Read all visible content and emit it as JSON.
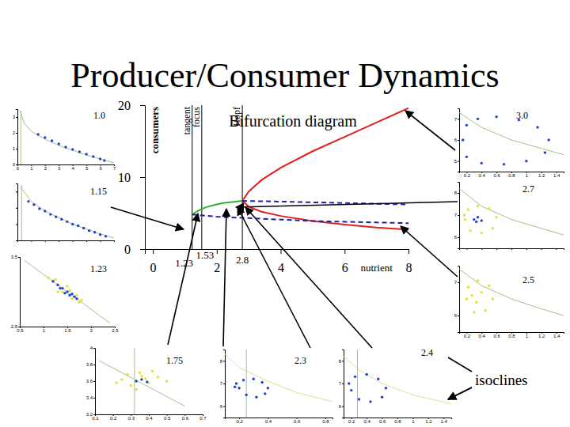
{
  "title": "Producer/Consumer Dynamics",
  "annotation": "isoclines",
  "chart_data": [
    {
      "type": "line",
      "title": "Bifurcation diagram",
      "x_label": "nutrient",
      "y_label": "consumers",
      "xlim": [
        -0.25,
        8
      ],
      "ylim": [
        0,
        20
      ],
      "xticks": [
        0,
        2,
        4,
        6,
        8
      ],
      "yticks": [
        0,
        10,
        20
      ],
      "vlines": [
        {
          "value": 1.23,
          "label": "tangent"
        },
        {
          "value": 1.53,
          "label": "focus"
        },
        {
          "value": 2.8,
          "label": "Hopf"
        }
      ],
      "series": [
        {
          "color": "#30b030",
          "line_style": "solid",
          "x": [
            1.23,
            1.4,
            1.6,
            1.8,
            2.0,
            2.2,
            2.4,
            2.6,
            2.8
          ],
          "values": [
            4.8,
            5.3,
            5.7,
            6.0,
            6.2,
            6.4,
            6.5,
            6.6,
            6.7
          ]
        },
        {
          "color": "#e02020",
          "line_style": "solid",
          "x": [
            2.8,
            3.0,
            3.4,
            4,
            5,
            6,
            7,
            8
          ],
          "values": [
            6.7,
            8.0,
            9.6,
            11.3,
            13.6,
            15.6,
            17.6,
            19.6
          ]
        },
        {
          "color": "#e02020",
          "line_style": "solid",
          "x": [
            2.8,
            3.0,
            3.4,
            4,
            5,
            6,
            7,
            8
          ],
          "values": [
            6.7,
            5.9,
            5.2,
            4.6,
            3.9,
            3.4,
            3.0,
            2.7
          ]
        },
        {
          "color": "#2020a0",
          "line_style": "dashed",
          "x": [
            2.8,
            4,
            5,
            6,
            7,
            8
          ],
          "values": [
            6.7,
            6.6,
            6.5,
            6.4,
            6.3,
            6.2
          ]
        },
        {
          "color": "#2020a0",
          "line_style": "dashed",
          "x": [
            1.23,
            2,
            3,
            4,
            5,
            6,
            7,
            8
          ],
          "values": [
            4.8,
            4.5,
            4.3,
            4.1,
            3.9,
            3.8,
            3.7,
            3.6
          ]
        }
      ]
    },
    {
      "type": "scatter",
      "title": "1.0",
      "xlim": [
        0,
        7
      ],
      "ylim": [
        0,
        3.5
      ],
      "xticks": [
        0,
        1,
        2,
        3,
        4,
        5,
        6,
        7
      ],
      "yticks": [
        0,
        1,
        2,
        3
      ],
      "series": [
        {
          "type": "line",
          "color": "#a8c088",
          "x": [
            0.2,
            0.5,
            1,
            2,
            3,
            4,
            5,
            6,
            7
          ],
          "values": [
            3.4,
            2.6,
            2.1,
            1.6,
            1.2,
            0.9,
            0.6,
            0.35,
            0.1
          ]
        },
        {
          "type": "line",
          "color": "#a8c088",
          "x": [
            0.25,
            0.25
          ],
          "values": [
            0,
            3.4
          ]
        },
        {
          "type": "scatter",
          "color": "#2040d0",
          "x": [
            1.5,
            2,
            2.5,
            3,
            3.5,
            4,
            4.5,
            5,
            5.5,
            6,
            6.3
          ],
          "values": [
            1.9,
            1.7,
            1.5,
            1.3,
            1.1,
            0.95,
            0.8,
            0.65,
            0.5,
            0.35,
            0.25
          ]
        }
      ]
    },
    {
      "type": "scatter",
      "title": "1.15",
      "tick_labels": false,
      "xlim": [
        0,
        7
      ],
      "ylim": [
        0,
        3.5
      ],
      "xticks": [
        0,
        1,
        2,
        3,
        4,
        5,
        6,
        7
      ],
      "yticks": [
        0,
        1,
        2,
        3
      ],
      "series": [
        {
          "type": "line",
          "color": "#a8c088",
          "x": [
            0.2,
            1,
            2,
            3,
            4,
            5,
            6,
            7
          ],
          "values": [
            3.3,
            2.4,
            1.8,
            1.4,
            1.0,
            0.7,
            0.4,
            0.15
          ]
        },
        {
          "type": "line",
          "color": "#a8c088",
          "x": [
            0.3,
            0.3
          ],
          "values": [
            0,
            3.4
          ]
        },
        {
          "type": "scatter",
          "color": "#2040d0",
          "x": [
            0.8,
            1.2,
            1.6,
            2,
            2.4,
            2.8,
            3.2,
            3.6,
            4,
            4.4,
            4.8,
            5.2,
            5.6,
            6,
            6.4
          ],
          "values": [
            2.4,
            2.2,
            1.95,
            1.8,
            1.6,
            1.45,
            1.3,
            1.15,
            1.0,
            0.9,
            0.75,
            0.6,
            0.5,
            0.35,
            0.25
          ]
        }
      ]
    },
    {
      "type": "scatter",
      "title": "1.23",
      "xlim": [
        0.5,
        2.5
      ],
      "ylim": [
        2.5,
        3.5
      ],
      "xticks": [
        0.5,
        1,
        1.5,
        2,
        2.5
      ],
      "yticks": [
        2.5,
        3.5
      ],
      "series": [
        {
          "type": "line",
          "color": "#a8c088",
          "x": [
            0.6,
            1,
            1.5,
            2,
            2.4
          ],
          "values": [
            3.45,
            3.25,
            3.0,
            2.75,
            2.55
          ]
        },
        {
          "type": "scatter",
          "color": "#e8e030",
          "x": [
            1.1,
            1.25,
            1.4,
            1.5,
            1.6,
            1.75,
            1.8,
            1.3,
            1.55,
            1.7
          ],
          "values": [
            3.2,
            3.18,
            3.0,
            3.08,
            2.9,
            2.85,
            2.88,
            3.0,
            3.02,
            2.95
          ]
        },
        {
          "type": "scatter",
          "color": "#2040d0",
          "x": [
            1.2,
            1.3,
            1.4,
            1.5,
            1.55,
            1.6,
            1.7,
            1.35,
            1.45,
            1.65
          ],
          "values": [
            3.15,
            3.1,
            3.05,
            3.0,
            2.95,
            2.97,
            2.9,
            3.05,
            2.98,
            2.93
          ]
        }
      ]
    },
    {
      "type": "scatter",
      "title": "1.75",
      "xlim": [
        0.1,
        0.7
      ],
      "ylim": [
        3.2,
        4
      ],
      "xticks": [
        0.1,
        0.2,
        0.3,
        0.4,
        0.5,
        0.6,
        0.7
      ],
      "yticks": [
        3.2,
        3.4,
        3.6,
        3.8,
        4
      ],
      "series": [
        {
          "type": "line",
          "color": "#a8c088",
          "x": [
            0.12,
            0.6
          ],
          "values": [
            3.85,
            3.3
          ]
        },
        {
          "type": "line",
          "color": "#a8c088",
          "x": [
            0.32,
            0.32
          ],
          "values": [
            3.2,
            4
          ]
        },
        {
          "type": "scatter",
          "color": "#e8e030",
          "x": [
            0.25,
            0.3,
            0.35,
            0.4,
            0.45,
            0.28,
            0.33,
            0.38,
            0.42,
            0.5,
            0.22,
            0.36
          ],
          "values": [
            3.62,
            3.55,
            3.7,
            3.58,
            3.65,
            3.68,
            3.5,
            3.63,
            3.72,
            3.6,
            3.58,
            3.66
          ]
        },
        {
          "type": "scatter",
          "color": "#2040d0",
          "x": [
            0.33,
            0.36,
            0.39
          ],
          "values": [
            3.6,
            3.62,
            3.59
          ]
        }
      ]
    },
    {
      "type": "scatter",
      "title": "2.3",
      "xlim": [
        0.1,
        0.85
      ],
      "ylim": [
        5.5,
        8.5
      ],
      "xticks": [
        0.2,
        0.4,
        0.6,
        0.8
      ],
      "yticks": [
        6,
        7,
        8
      ],
      "series": [
        {
          "type": "line",
          "color": "#e0e090",
          "x": [
            0.1,
            0.2,
            0.4,
            0.6,
            0.85
          ],
          "values": [
            8.3,
            7.7,
            7.1,
            6.6,
            6.2
          ]
        },
        {
          "type": "line",
          "color": "#a8c088",
          "x": [
            0.25,
            0.25
          ],
          "values": [
            5.5,
            8.5
          ]
        },
        {
          "type": "scatter",
          "color": "#2040d0",
          "x": [
            0.2,
            0.25,
            0.32,
            0.38,
            0.4,
            0.36,
            0.3,
            0.23,
            0.18,
            0.17
          ],
          "values": [
            6.8,
            6.5,
            6.4,
            6.55,
            6.8,
            7.05,
            7.2,
            7.15,
            7.0,
            6.85
          ]
        }
      ]
    },
    {
      "type": "scatter",
      "title": "2.4",
      "xlim": [
        0.1,
        1.5
      ],
      "ylim": [
        5.5,
        8.5
      ],
      "xticks": [
        0.2,
        0.4,
        0.6,
        0.8,
        1,
        1.2,
        1.4
      ],
      "yticks": [
        6,
        7,
        8
      ],
      "series": [
        {
          "type": "line",
          "color": "#e0e090",
          "x": [
            0.1,
            0.3,
            0.6,
            1,
            1.5
          ],
          "values": [
            8.2,
            7.6,
            7.0,
            6.5,
            6.1
          ]
        },
        {
          "type": "line",
          "color": "#a8c088",
          "x": [
            0.28,
            0.28
          ],
          "values": [
            5.5,
            8.5
          ]
        },
        {
          "type": "scatter",
          "color": "#2040d0",
          "x": [
            0.2,
            0.3,
            0.45,
            0.6,
            0.65,
            0.55,
            0.4,
            0.25,
            0.17
          ],
          "values": [
            6.7,
            6.3,
            6.2,
            6.4,
            6.8,
            7.2,
            7.4,
            7.3,
            7.0
          ]
        }
      ]
    },
    {
      "type": "scatter",
      "title": "3.0",
      "xlim": [
        0.1,
        1.5
      ],
      "ylim": [
        4.5,
        7.5
      ],
      "xticks": [
        0.2,
        0.4,
        0.6,
        0.8,
        1,
        1.2,
        1.4
      ],
      "yticks": [
        5,
        6,
        7
      ],
      "series": [
        {
          "type": "line",
          "color": "#a8c088",
          "x": [
            0.1,
            0.4,
            0.8,
            1.2,
            1.5
          ],
          "values": [
            7.3,
            6.6,
            6.0,
            5.6,
            5.3
          ]
        },
        {
          "type": "scatter",
          "color": "#2040d0",
          "x": [
            0.15,
            0.2,
            0.4,
            0.7,
            1.0,
            1.25,
            1.3,
            1.15,
            0.9,
            0.6,
            0.35,
            0.2
          ],
          "values": [
            6,
            5.2,
            4.9,
            4.85,
            5.0,
            5.4,
            6.0,
            6.6,
            6.95,
            7.1,
            7.0,
            6.7
          ]
        }
      ]
    },
    {
      "type": "scatter",
      "title": "2.7",
      "tick_labels": "y",
      "xlim": [
        0.1,
        1.5
      ],
      "ylim": [
        5.5,
        8.5
      ],
      "xticks": [
        0.2,
        0.4,
        0.6,
        0.8,
        1,
        1.2,
        1.4
      ],
      "yticks": [
        6,
        7,
        8
      ],
      "series": [
        {
          "type": "line",
          "color": "#a8c088",
          "x": [
            0.1,
            0.4,
            0.8,
            1.2,
            1.5
          ],
          "values": [
            8.2,
            7.4,
            6.8,
            6.4,
            6.1
          ]
        },
        {
          "type": "scatter",
          "color": "#e8e030",
          "x": [
            0.18,
            0.25,
            0.4,
            0.55,
            0.6,
            0.5,
            0.35,
            0.22,
            0.17
          ],
          "values": [
            6.8,
            6.3,
            6.2,
            6.4,
            6.9,
            7.3,
            7.4,
            7.25,
            7.0
          ]
        },
        {
          "type": "scatter",
          "color": "#2040d0",
          "x": [
            0.3,
            0.35,
            0.4,
            0.33
          ],
          "values": [
            6.8,
            6.9,
            6.75,
            6.7
          ]
        }
      ]
    },
    {
      "type": "scatter",
      "title": "2.5",
      "xlim": [
        0.1,
        1.5
      ],
      "ylim": [
        5.5,
        7.5
      ],
      "xticks": [
        0.2,
        0.4,
        0.6,
        0.8,
        1,
        1.2,
        1.4
      ],
      "yticks": [
        6,
        7
      ],
      "series": [
        {
          "type": "line",
          "color": "#a8c088",
          "x": [
            0.1,
            0.4,
            0.8,
            1.2,
            1.5
          ],
          "values": [
            7.4,
            6.9,
            6.5,
            6.2,
            6.0
          ]
        },
        {
          "type": "scatter",
          "color": "#e8e030",
          "x": [
            0.2,
            0.3,
            0.45,
            0.55,
            0.5,
            0.35,
            0.22,
            0.27,
            0.4,
            0.33
          ],
          "values": [
            6.5,
            6.1,
            6.15,
            6.5,
            6.9,
            7.05,
            6.85,
            6.6,
            6.7,
            6.4
          ]
        }
      ]
    }
  ]
}
